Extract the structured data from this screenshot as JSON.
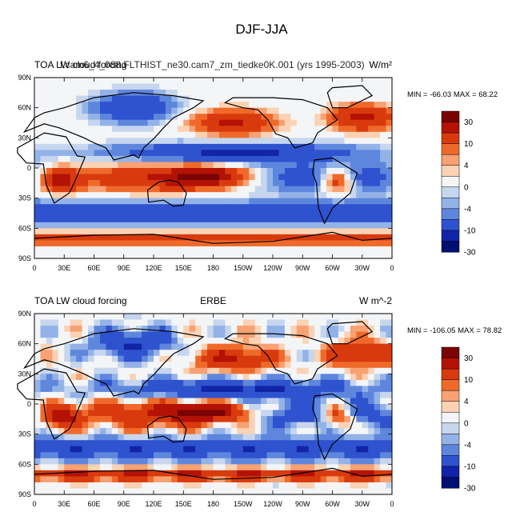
{
  "figure_title": "DJF-JJA",
  "chart_data": [
    {
      "type": "heatmap",
      "subtype": "global contour map",
      "title_left": "TOA LW cloud forcing",
      "title_center_overlap": "f.cam6_4_088.FLTHIST_ne30.cam7_zm_tiedke0K.001 (yrs 1995-2003)",
      "title_right": "W/m²",
      "stats_label": "MIN = -66.03 MAX =  68.22",
      "min": -66.03,
      "max": 68.22,
      "x_ticks": [
        "0",
        "30E",
        "60E",
        "90E",
        "120E",
        "150E",
        "180",
        "150W",
        "120W",
        "90W",
        "60W",
        "30W",
        "0"
      ],
      "y_ticks": [
        "90N",
        "60N",
        "30N",
        "0",
        "30S",
        "60S",
        "90S"
      ],
      "colorbar_labels": [
        "30",
        "10",
        "4",
        "0",
        "-4",
        "-10",
        "-30"
      ]
    },
    {
      "type": "heatmap",
      "subtype": "global contour map",
      "title_left": "TOA LW cloud forcing",
      "title_center": "ERBE",
      "title_right": "W m^-2",
      "stats_label": "MIN = -106.05 MAX =  78.82",
      "min": -106.05,
      "max": 78.82,
      "x_ticks": [
        "0",
        "30E",
        "60E",
        "90E",
        "120E",
        "150E",
        "180",
        "150W",
        "120W",
        "90W",
        "60W",
        "30W",
        "0"
      ],
      "y_ticks": [
        "90N",
        "60N",
        "30N",
        "0",
        "30S",
        "60S",
        "90S"
      ],
      "colorbar_labels": [
        "30",
        "10",
        "4",
        "0",
        "-4",
        "-10",
        "-30"
      ]
    }
  ],
  "palette": [
    "#7a0403",
    "#b31205",
    "#d93a0d",
    "#ef6a2a",
    "#f8a173",
    "#fbd2b4",
    "#f3f5f7",
    "#c6d6ee",
    "#93b3e8",
    "#5f86dd",
    "#2f52cf",
    "#1124a8",
    "#000f73"
  ]
}
